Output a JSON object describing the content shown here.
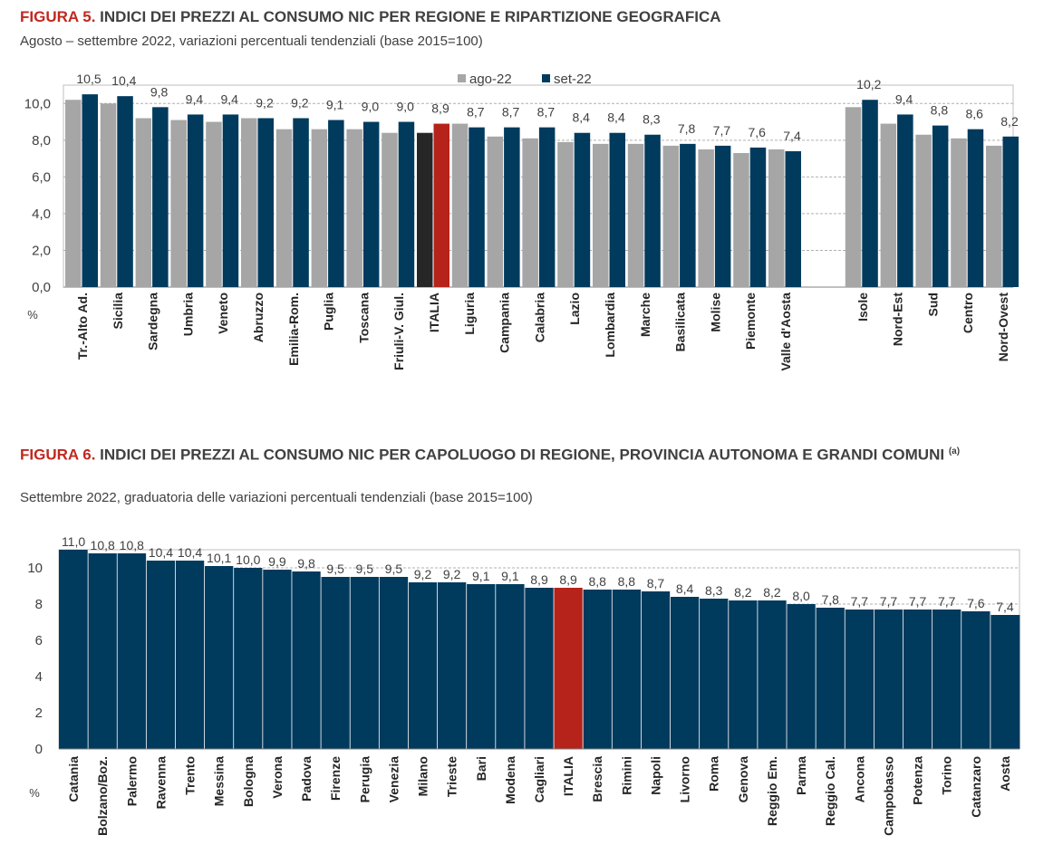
{
  "figure5": {
    "title_number": "FIGURA 5.",
    "title_text": "INDICI DEI PREZZI AL CONSUMO NIC PER REGIONE E RIPARTIZIONE GEOGRAFICA",
    "subtitle": "Agosto – settembre 2022, variazioni percentuali tendenziali (base 2015=100)",
    "unit_label": "%"
  },
  "figure6": {
    "title_number": "FIGURA 6.",
    "title_text": "INDICI DEI PREZZI AL CONSUMO NIC PER CAPOLUOGO DI REGIONE, PROVINCIA AUTONOMA E GRANDI COMUNI",
    "title_note": "(a)",
    "subtitle": "Settembre 2022, graduatoria delle variazioni percentuali tendenziali (base 2015=100)",
    "unit_label": "%"
  },
  "colors": {
    "ago": "#a6a6a6",
    "set": "#003a5d",
    "italia_ago": "#262626",
    "italia_set": "#b5231a",
    "title_accent": "#c0281f",
    "text": "#404040"
  },
  "chart_data": [
    {
      "type": "bar",
      "categories": [
        "Tr.-Alto Ad.",
        "Sicilia",
        "Sardegna",
        "Umbria",
        "Veneto",
        "Abruzzo",
        "Emilia-Rom.",
        "Puglia",
        "Toscana",
        "Friuli-V. Giul.",
        "ITALIA",
        "Liguria",
        "Campania",
        "Calabria",
        "Lazio",
        "Lombardia",
        "Marche",
        "Basilicata",
        "Molise",
        "Piemonte",
        "Valle d'Aosta",
        "Isole",
        "Nord-Est",
        "Sud",
        "Centro",
        "Nord-Ovest"
      ],
      "series": [
        {
          "name": "ago-22",
          "values": [
            10.2,
            10.0,
            9.2,
            9.1,
            9.0,
            9.2,
            8.6,
            8.6,
            8.6,
            8.4,
            8.4,
            8.9,
            8.2,
            8.1,
            7.9,
            7.8,
            7.8,
            7.7,
            7.5,
            7.3,
            7.5,
            9.8,
            8.9,
            8.3,
            8.1,
            7.7
          ]
        },
        {
          "name": "set-22",
          "values": [
            10.5,
            10.4,
            9.8,
            9.4,
            9.4,
            9.2,
            9.2,
            9.1,
            9.0,
            9.0,
            8.9,
            8.7,
            8.7,
            8.7,
            8.4,
            8.4,
            8.3,
            7.8,
            7.7,
            7.6,
            7.4,
            10.2,
            9.4,
            8.8,
            8.6,
            8.2
          ]
        }
      ],
      "data_labels": [
        "10,5",
        "10,4",
        "9,8",
        "9,4",
        "9,4",
        "9,2",
        "9,2",
        "9,1",
        "9,0",
        "9,0",
        "8,9",
        "8,7",
        "8,7",
        "8,7",
        "8,4",
        "8,4",
        "8,3",
        "7,8",
        "7,7",
        "7,6",
        "7,4",
        "10,2",
        "9,4",
        "8,8",
        "8,6",
        "8,2"
      ],
      "yticks": [
        "0,0",
        "2,0",
        "4,0",
        "6,0",
        "8,0",
        "10,0"
      ],
      "ylim": [
        0,
        11
      ],
      "grid": true,
      "legend": "top-center",
      "highlight": "ITALIA"
    },
    {
      "type": "bar",
      "categories": [
        "Catania",
        "Bolzano/Boz.",
        "Palermo",
        "Ravenna",
        "Trento",
        "Messina",
        "Bologna",
        "Verona",
        "Padova",
        "Firenze",
        "Perugia",
        "Venezia",
        "Milano",
        "Trieste",
        "Bari",
        "Modena",
        "Cagliari",
        "ITALIA",
        "Brescia",
        "Rimini",
        "Napoli",
        "Livorno",
        "Roma",
        "Genova",
        "Reggio Em.",
        "Parma",
        "Reggio Cal.",
        "Ancona",
        "Campobasso",
        "Potenza",
        "Torino",
        "Catanzaro",
        "Aosta"
      ],
      "values": [
        11.0,
        10.8,
        10.8,
        10.4,
        10.4,
        10.1,
        10.0,
        9.9,
        9.8,
        9.5,
        9.5,
        9.5,
        9.2,
        9.2,
        9.1,
        9.1,
        8.9,
        8.9,
        8.8,
        8.8,
        8.7,
        8.4,
        8.3,
        8.2,
        8.2,
        8.0,
        7.8,
        7.7,
        7.7,
        7.7,
        7.7,
        7.6,
        7.4
      ],
      "data_labels": [
        "11,0",
        "10,8",
        "10,8",
        "10,4",
        "10,4",
        "10,1",
        "10,0",
        "9,9",
        "9,8",
        "9,5",
        "9,5",
        "9,5",
        "9,2",
        "9,2",
        "9,1",
        "9,1",
        "8,9",
        "8,9",
        "8,8",
        "8,8",
        "8,7",
        "8,4",
        "8,3",
        "8,2",
        "8,2",
        "8,0",
        "7,8",
        "7,7",
        "7,7",
        "7,7",
        "7,7",
        "7,6",
        "7,4"
      ],
      "yticks": [
        "0",
        "2",
        "4",
        "6",
        "8",
        "10"
      ],
      "ylim": [
        0,
        11
      ],
      "grid": true,
      "highlight": "ITALIA"
    }
  ]
}
